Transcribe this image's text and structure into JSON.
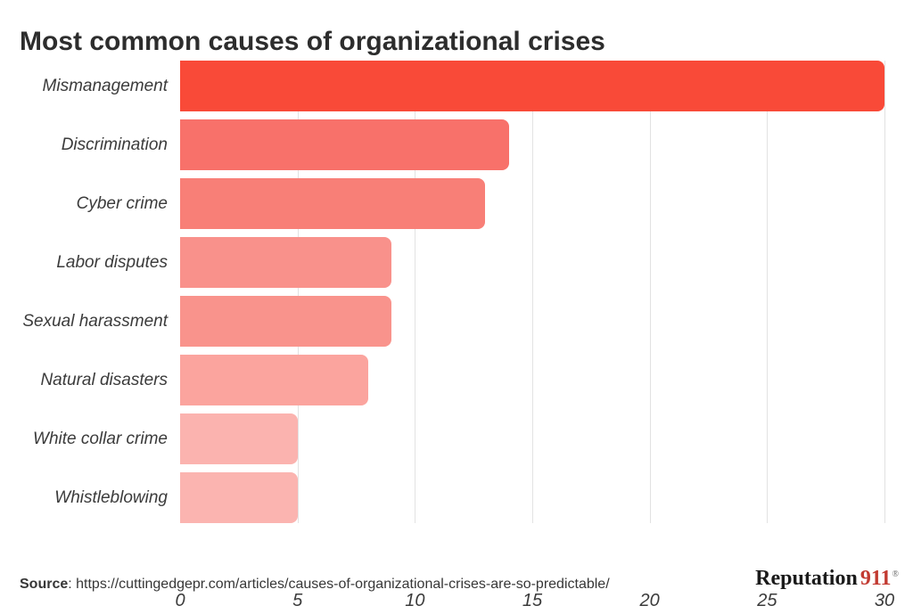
{
  "chart_data": {
    "type": "bar",
    "orientation": "horizontal",
    "title": "Most common causes of organizational crises",
    "categories": [
      "Mismanagement",
      "Discrimination",
      "Cyber crime",
      "Labor disputes",
      "Sexual harassment",
      "Natural disasters",
      "White collar crime",
      "Whistleblowing"
    ],
    "values": [
      30,
      14,
      13,
      9,
      9,
      8,
      5,
      5
    ],
    "bar_colors": [
      "#f94a38",
      "#f8716a",
      "#f87f77",
      "#f9918b",
      "#f9938c",
      "#fba49e",
      "#fbb3af",
      "#fbb4b0"
    ],
    "xlabel": "",
    "ylabel": "",
    "xlim": [
      0,
      30
    ],
    "x_ticks": [
      0,
      5,
      10,
      15,
      20,
      25,
      30
    ],
    "grid": "vertical-gridlines",
    "gridline_color": "#e2e2e2",
    "legend": "none"
  },
  "footer": {
    "source_label": "Source",
    "source_text": ": https://cuttingedgepr.com/articles/causes-of-organizational-crises-are-so-predictable/"
  },
  "logo": {
    "part1": "Reputation",
    "part2": "911",
    "registered": "®",
    "part2_color": "#c23a31"
  },
  "colors": {
    "title_text": "#2d2d2d",
    "label_text": "#3b3b3b",
    "background": "#ffffff"
  }
}
